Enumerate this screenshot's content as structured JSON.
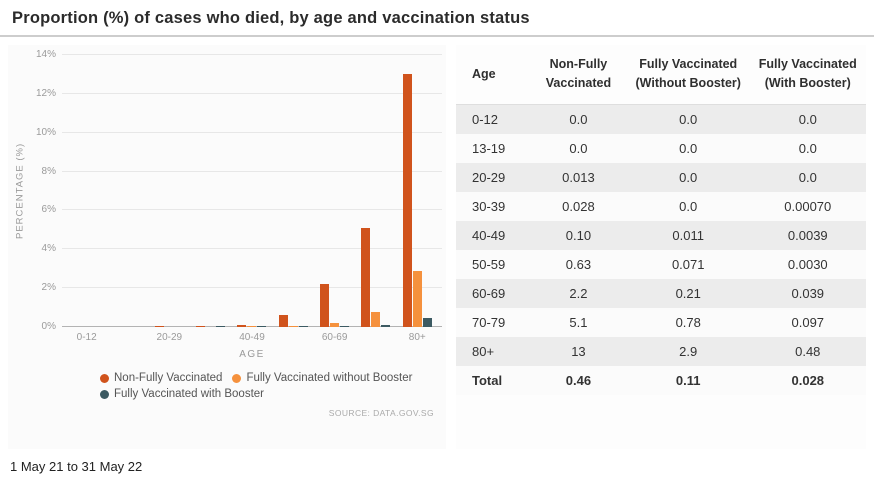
{
  "title": "Proportion (%) of cases who died, by age and vaccination status",
  "date_range": "1 May 21 to 31 May 22",
  "source": "SOURCE: DATA.GOV.SG",
  "chart_data": {
    "type": "bar",
    "title": "Proportion (%) of cases who died, by age and vaccination status",
    "categories": [
      "0-12",
      "13-19",
      "20-29",
      "30-39",
      "40-49",
      "50-59",
      "60-69",
      "70-79",
      "80+"
    ],
    "visible_x_tick_labels": [
      "0-12",
      "20-29",
      "40-49",
      "60-69",
      "80+"
    ],
    "series": [
      {
        "name": "Non-Fully Vaccinated",
        "color": "#d0531c",
        "values": [
          0.0,
          0.0,
          0.013,
          0.028,
          0.1,
          0.63,
          2.2,
          5.1,
          13
        ]
      },
      {
        "name": "Fully Vaccinated without Booster",
        "color": "#f5913d",
        "values": [
          0.0,
          0.0,
          0.0,
          0.0,
          0.011,
          0.071,
          0.21,
          0.78,
          2.9
        ]
      },
      {
        "name": "Fully Vaccinated with Booster",
        "color": "#3c5a62",
        "values": [
          0.0,
          0.0,
          0.0,
          0.0007,
          0.0039,
          0.003,
          0.039,
          0.097,
          0.48
        ]
      }
    ],
    "xlabel": "AGE",
    "ylabel": "PERCENTAGE (%)",
    "ylim": [
      0,
      14
    ],
    "y_tick_labels": [
      "0%",
      "2%",
      "4%",
      "6%",
      "8%",
      "10%",
      "12%",
      "14%"
    ],
    "grid": true,
    "legend_position": "bottom"
  },
  "table": {
    "headers": [
      "Age",
      "Non-Fully Vaccinated",
      "Fully Vaccinated (Without Booster)",
      "Fully Vaccinated (With Booster)"
    ],
    "rows": [
      [
        "0-12",
        "0.0",
        "0.0",
        "0.0"
      ],
      [
        "13-19",
        "0.0",
        "0.0",
        "0.0"
      ],
      [
        "20-29",
        "0.013",
        "0.0",
        "0.0"
      ],
      [
        "30-39",
        "0.028",
        "0.0",
        "0.00070"
      ],
      [
        "40-49",
        "0.10",
        "0.011",
        "0.0039"
      ],
      [
        "50-59",
        "0.63",
        "0.071",
        "0.0030"
      ],
      [
        "60-69",
        "2.2",
        "0.21",
        "0.039"
      ],
      [
        "70-79",
        "5.1",
        "0.78",
        "0.097"
      ],
      [
        "80+",
        "13",
        "2.9",
        "0.48"
      ],
      [
        "Total",
        "0.46",
        "0.11",
        "0.028"
      ]
    ]
  }
}
